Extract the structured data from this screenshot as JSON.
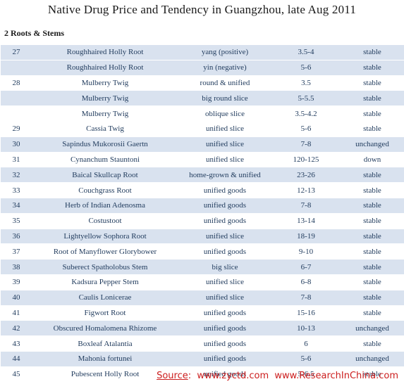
{
  "title": "Native Drug Price and Tendency in Guangzhou, late Aug 2011",
  "section": "2 Roots & Stems",
  "rows": [
    {
      "no": "27",
      "name": "Roughhaired Holly Root",
      "spec": "yang (positive)",
      "price": "3.5-4",
      "trend": "stable"
    },
    {
      "no": "",
      "name": "Roughhaired Holly Root",
      "spec": "yin (negative)",
      "price": "5-6",
      "trend": "stable"
    },
    {
      "no": "28",
      "name": "Mulberry Twig",
      "spec": "round & unified",
      "price": "3.5",
      "trend": "stable"
    },
    {
      "no": "",
      "name": "Mulberry Twig",
      "spec": "big round slice",
      "price": "5-5.5",
      "trend": "stable"
    },
    {
      "no": "",
      "name": "Mulberry Twig",
      "spec": "oblique slice",
      "price": "3.5-4.2",
      "trend": "stable"
    },
    {
      "no": "29",
      "name": "Cassia Twig",
      "spec": "unified slice",
      "price": "5-6",
      "trend": "stable"
    },
    {
      "no": "30",
      "name": "Sapindus Mukorosii Gaertn",
      "spec": "unified slice",
      "price": "7-8",
      "trend": "unchanged"
    },
    {
      "no": "31",
      "name": "Cynanchum Stauntoni",
      "spec": "unified slice",
      "price": "120-125",
      "trend": "down"
    },
    {
      "no": "32",
      "name": "Baical Skullcap Root",
      "spec": "home-grown & unified",
      "price": "23-26",
      "trend": "stable"
    },
    {
      "no": "33",
      "name": "Couchgrass Root",
      "spec": "unified goods",
      "price": "12-13",
      "trend": "stable"
    },
    {
      "no": "34",
      "name": "Herb of Indian Adenosma",
      "spec": "unified goods",
      "price": "7-8",
      "trend": "stable"
    },
    {
      "no": "35",
      "name": "Costustoot",
      "spec": "unified goods",
      "price": "13-14",
      "trend": "stable"
    },
    {
      "no": "36",
      "name": "Lightyellow Sophora Root",
      "spec": "unified slice",
      "price": "18-19",
      "trend": "stable"
    },
    {
      "no": "37",
      "name": "Root of Manyflower Glorybower",
      "spec": "unified goods",
      "price": "9-10",
      "trend": "stable"
    },
    {
      "no": "38",
      "name": "Suberect Spatholobus Stem",
      "spec": "big slice",
      "price": "6-7",
      "trend": "stable"
    },
    {
      "no": "39",
      "name": "Kadsura Pepper Stem",
      "spec": "unified slice",
      "price": "6-8",
      "trend": "stable"
    },
    {
      "no": "40",
      "name": "Caulis Lonicerae",
      "spec": "unified slice",
      "price": "7-8",
      "trend": "stable"
    },
    {
      "no": "41",
      "name": "Figwort Root",
      "spec": "unified goods",
      "price": "15-16",
      "trend": "stable"
    },
    {
      "no": "42",
      "name": "Obscured Homalomena Rhizome",
      "spec": "unified goods",
      "price": "10-13",
      "trend": "unchanged"
    },
    {
      "no": "43",
      "name": "Boxleaf Atalantia",
      "spec": "unified goods",
      "price": "6",
      "trend": "stable"
    },
    {
      "no": "44",
      "name": "Mahonia fortunei",
      "spec": "unified goods",
      "price": "5-6",
      "trend": "unchanged"
    },
    {
      "no": "45",
      "name": "Pubescent Holly Root",
      "spec": "unified goods",
      "price": "5-6.5",
      "trend": "stable"
    }
  ],
  "source": {
    "label": "Source",
    "sep": ":",
    "site1": "www.zyctd.com",
    "site2": "www.ResearchInChina.com"
  }
}
